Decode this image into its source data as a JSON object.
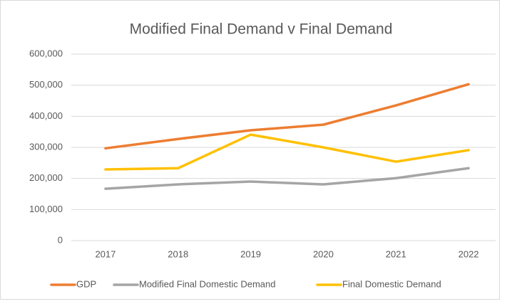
{
  "chart_data": {
    "type": "line",
    "title": "Modified Final Demand v Final Demand",
    "categories": [
      "2017",
      "2018",
      "2019",
      "2020",
      "2021",
      "2022"
    ],
    "series": [
      {
        "name": "GDP",
        "color": "#ed7d31",
        "values": [
          297000,
          327000,
          355000,
          373000,
          435000,
          503000
        ]
      },
      {
        "name": "Modified Final Domestic Demand",
        "color": "#a5a5a5",
        "values": [
          167000,
          181000,
          190000,
          181000,
          201000,
          233000
        ]
      },
      {
        "name": "Final Domestic Demand",
        "color": "#ffc000",
        "values": [
          229000,
          233000,
          341000,
          300000,
          254000,
          291000
        ]
      }
    ],
    "ylim": [
      0,
      600000
    ],
    "yticks": [
      0,
      {
        "value": 100000,
        "label": "100,000"
      },
      {
        "value": 200000,
        "label": "200,000"
      },
      {
        "value": 300000,
        "label": "300,000"
      },
      {
        "value": 400000,
        "label": "400,000"
      },
      {
        "value": 500000,
        "label": "500,000"
      },
      {
        "value": 600000,
        "label": "600,000"
      }
    ],
    "grid": true,
    "legend": "bottom"
  }
}
